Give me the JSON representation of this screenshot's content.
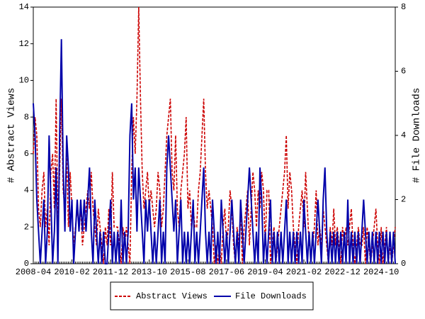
{
  "chart_data": {
    "type": "line",
    "ylabel": "# Abstract Views",
    "y2label": "# File Downloads",
    "categories": [
      "2008-04",
      null,
      null,
      null,
      null,
      null,
      null,
      null,
      null,
      null,
      null,
      null,
      null,
      null,
      null,
      null,
      null,
      null,
      null,
      null,
      null,
      null,
      "2010-02",
      null,
      null,
      null,
      null,
      null,
      null,
      null,
      null,
      null,
      null,
      null,
      null,
      null,
      null,
      null,
      null,
      null,
      null,
      null,
      null,
      null,
      "2011-12",
      null,
      null,
      null,
      null,
      null,
      null,
      null,
      null,
      null,
      null,
      null,
      null,
      null,
      null,
      null,
      null,
      null,
      null,
      null,
      null,
      null,
      "2013-10",
      null,
      null,
      null,
      null,
      null,
      null,
      null,
      null,
      null,
      null,
      null,
      null,
      null,
      null,
      null,
      null,
      null,
      null,
      null,
      null,
      null,
      "2015-08",
      null,
      null,
      null,
      null,
      null,
      null,
      null,
      null,
      null,
      null,
      null,
      null,
      null,
      null,
      null,
      null,
      null,
      null,
      null,
      null,
      null,
      "2017-06",
      null,
      null,
      null,
      null,
      null,
      null,
      null,
      null,
      null,
      null,
      null,
      null,
      null,
      null,
      null,
      null,
      null,
      null,
      null,
      null,
      null,
      "2019-04",
      null,
      null,
      null,
      null,
      null,
      null,
      null,
      null,
      null,
      null,
      null,
      null,
      null,
      null,
      null,
      null,
      null,
      null,
      null,
      null,
      null,
      "2021-02",
      null,
      null,
      null,
      null,
      null,
      null,
      null,
      null,
      null,
      null,
      null,
      null,
      null,
      null,
      null,
      null,
      null,
      null,
      null,
      null,
      null,
      "2022-12",
      null,
      null,
      null,
      null,
      null,
      null,
      null,
      null,
      null,
      null,
      null,
      null,
      null,
      null,
      null,
      null,
      null,
      null,
      null,
      null,
      null,
      "2024-10",
      null,
      null,
      null,
      null,
      null,
      null,
      null,
      null
    ],
    "series": [
      {
        "name": "Abstract Views",
        "color": "#cc0000",
        "style": "dashed",
        "axis": "y",
        "values": [
          6,
          8,
          7,
          3,
          2,
          4,
          5,
          2,
          3,
          1,
          5,
          6,
          3,
          9,
          2,
          5,
          9,
          4,
          3,
          6,
          2,
          5,
          3,
          1,
          2,
          3,
          2,
          3,
          1,
          2,
          3,
          4,
          3,
          5,
          3,
          2,
          1,
          3,
          2,
          1,
          0,
          2,
          1,
          3,
          1,
          5,
          2,
          2,
          2,
          1,
          0,
          2,
          1,
          2,
          1,
          0,
          5,
          8,
          6,
          9,
          14,
          9,
          5,
          3,
          4,
          5,
          3,
          4,
          3,
          2,
          3,
          5,
          4,
          2,
          3,
          5,
          7,
          8,
          9,
          5,
          4,
          7,
          3,
          2,
          4,
          5,
          6,
          8,
          3,
          4,
          2,
          3,
          2,
          2,
          4,
          5,
          7,
          9,
          5,
          3,
          4,
          3,
          2,
          0,
          1,
          0,
          1,
          0,
          2,
          3,
          1,
          2,
          4,
          3,
          1,
          0,
          2,
          1,
          3,
          0,
          2,
          3,
          4,
          1,
          3,
          5,
          4,
          2,
          4,
          3,
          5,
          4,
          1,
          4,
          4,
          0,
          1,
          2,
          0,
          1,
          2,
          3,
          4,
          5,
          7,
          3,
          5,
          4,
          2,
          1,
          0,
          2,
          3,
          4,
          2,
          5,
          3,
          1,
          1,
          1,
          2,
          4,
          1,
          2,
          1,
          3,
          2,
          1,
          0,
          2,
          1,
          3,
          1,
          2,
          1,
          0,
          2,
          1,
          2,
          1,
          2,
          3,
          1,
          0,
          1,
          2,
          1,
          1,
          2,
          0,
          2,
          1,
          0,
          1,
          2,
          3,
          1,
          0,
          2,
          0,
          1,
          2,
          0,
          1,
          0,
          1,
          2
        ]
      },
      {
        "name": "File Downloads",
        "color": "#0000aa",
        "style": "solid",
        "axis": "y2",
        "values": [
          5,
          4,
          2,
          1,
          0,
          1,
          2,
          0,
          1,
          4,
          2,
          0,
          1,
          3,
          0,
          4,
          7,
          3,
          1,
          4,
          3,
          1,
          2,
          0,
          1,
          2,
          1,
          2,
          1,
          2,
          1,
          2,
          3,
          1,
          0,
          2,
          1,
          0,
          1,
          0,
          1,
          0,
          0,
          1,
          2,
          0,
          1,
          0,
          1,
          0,
          2,
          0,
          1,
          0,
          1,
          4,
          5,
          2,
          3,
          1,
          3,
          2,
          1,
          0,
          2,
          1,
          2,
          1,
          0,
          1,
          0,
          1,
          2,
          0,
          1,
          0,
          3,
          4,
          3,
          2,
          1,
          2,
          0,
          1,
          2,
          0,
          1,
          0,
          1,
          0,
          1,
          2,
          0,
          1,
          0,
          1,
          2,
          3,
          1,
          0,
          1,
          0,
          2,
          1,
          0,
          1,
          0,
          2,
          1,
          0,
          1,
          0,
          1,
          2,
          1,
          0,
          1,
          0,
          2,
          1,
          0,
          1,
          2,
          3,
          2,
          1,
          0,
          1,
          0,
          3,
          2,
          0,
          1,
          0,
          1,
          2,
          0,
          1,
          0,
          1,
          0,
          1,
          0,
          1,
          2,
          0,
          1,
          0,
          1,
          0,
          1,
          0,
          1,
          0,
          2,
          1,
          0,
          1,
          0,
          1,
          0,
          1,
          2,
          1,
          0,
          2,
          3,
          1,
          0,
          1,
          0,
          1,
          0,
          1,
          0,
          1,
          0,
          1,
          0,
          2,
          0,
          1,
          0,
          1,
          0,
          1,
          0,
          1,
          2,
          1,
          0,
          1,
          0,
          1,
          0,
          1,
          0,
          1,
          0,
          1,
          0,
          1,
          0,
          1,
          0,
          1,
          0
        ]
      }
    ],
    "ylim": [
      0,
      14
    ],
    "yticks": [
      0,
      2,
      4,
      6,
      8,
      10,
      12,
      14
    ],
    "y2lim": [
      0,
      8
    ],
    "y2ticks": [
      0,
      2,
      4,
      6,
      8
    ],
    "legend": "bottom"
  }
}
